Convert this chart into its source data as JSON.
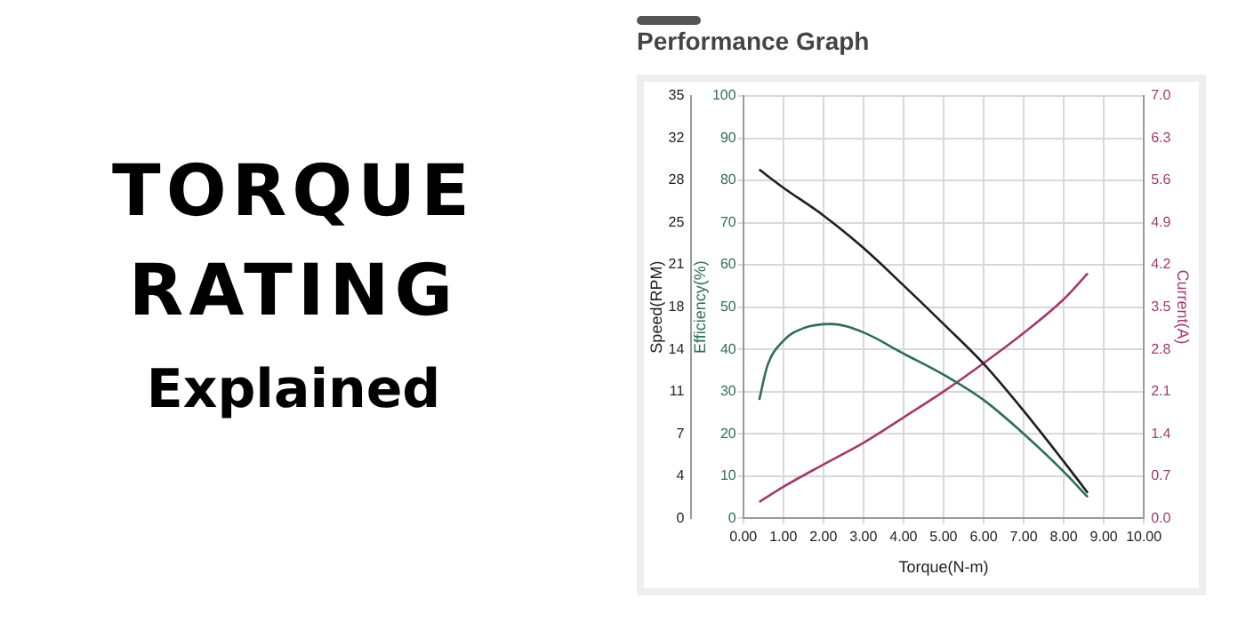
{
  "chart_data": {
    "type": "line",
    "title": "Performance Graph",
    "annotations": [
      "TORQUE RATING",
      "Explained"
    ],
    "xlabel": "Torque(N-m)",
    "ylabel": "Efficiency(%)",
    "y2label": "Current(A)",
    "y3label": "Speed(RPM)",
    "xlim": [
      0,
      10
    ],
    "xticks": [
      {
        "value": 0,
        "label": "0.00"
      },
      {
        "value": 1,
        "label": "1.00"
      },
      {
        "value": 2,
        "label": "2.00"
      },
      {
        "value": 3,
        "label": "3.00"
      },
      {
        "value": 4,
        "label": "4.00"
      },
      {
        "value": 5,
        "label": "5.00"
      },
      {
        "value": 6,
        "label": "6.00"
      },
      {
        "value": 7,
        "label": "7.00"
      },
      {
        "value": 8,
        "label": "8.00"
      },
      {
        "value": 9,
        "label": "9.00"
      },
      {
        "value": 10,
        "label": "10.00"
      }
    ],
    "ylim": [
      0,
      100
    ],
    "yticks": [
      0,
      10,
      20,
      30,
      40,
      50,
      60,
      70,
      80,
      90,
      100
    ],
    "y2lim": [
      0,
      7
    ],
    "y2ticks": [
      {
        "value": 0,
        "label": "0.0"
      },
      0.7,
      1.4,
      2.1,
      2.8,
      3.5,
      4.2,
      4.9,
      5.6,
      6.3,
      {
        "value": 7,
        "label": "7.0"
      }
    ],
    "y3lim": [
      0,
      35
    ],
    "y3ticks": [
      0,
      {
        "value": 3.5,
        "label": "4"
      },
      7,
      {
        "value": 10.5,
        "label": "11"
      },
      14,
      {
        "value": 17.5,
        "label": "18"
      },
      21,
      {
        "value": 24.5,
        "label": "25"
      },
      28,
      {
        "value": 31.5,
        "label": "32"
      },
      35
    ],
    "grid": true,
    "marker": "none",
    "line_style": "solid",
    "series": [
      {
        "axis": "y3",
        "color": "#1e1e1e",
        "x": [
          0.4,
          1,
          2,
          3,
          4,
          5,
          6,
          7,
          8,
          8.6
        ],
        "values": [
          28.9,
          27.4,
          25.1,
          22.4,
          19.3,
          16.1,
          12.8,
          8.9,
          4.7,
          2.1
        ]
      },
      {
        "axis": "y",
        "color": "#2e6e58",
        "x": [
          0.4,
          0.6,
          1,
          1.5,
          2.2,
          3,
          4,
          5,
          6,
          7,
          8,
          8.6
        ],
        "values": [
          28,
          36,
          42,
          45,
          46,
          44,
          39,
          34,
          28,
          20,
          11,
          5
        ]
      },
      {
        "axis": "y2",
        "color": "#a23a6e",
        "x": [
          0.4,
          1,
          2,
          3,
          4,
          5,
          6,
          7,
          8,
          8.6
        ],
        "values": [
          0.27,
          0.52,
          0.89,
          1.25,
          1.67,
          2.1,
          2.57,
          3.07,
          3.63,
          4.06
        ]
      }
    ]
  }
}
